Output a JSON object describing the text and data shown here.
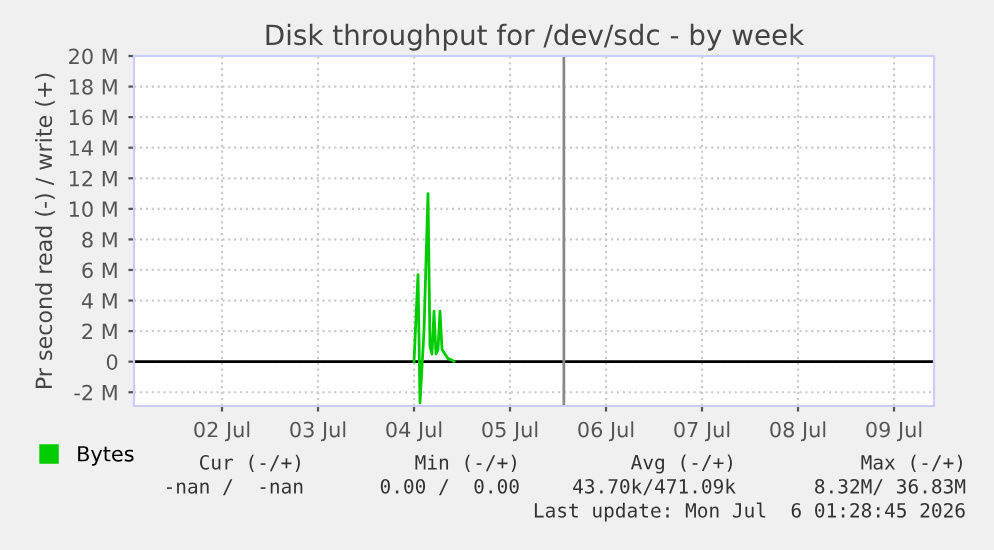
{
  "chart_data": {
    "type": "line",
    "title": "Disk throughput for /dev/sdc - by week",
    "ylabel": "Pr second read (-) / write (+)",
    "series": [
      {
        "name": "Bytes",
        "color": "#00cc00",
        "x": [
          "2026-07-04T12:00",
          "2026-07-04T13:00",
          "2026-07-04T13:30",
          "2026-07-04T14:30",
          "2026-07-04T15:30",
          "2026-07-04T16:00",
          "2026-07-04T16:30",
          "2026-07-04T17:00",
          "2026-07-04T17:30",
          "2026-07-04T18:00",
          "2026-07-04T18:30",
          "2026-07-04T19:00",
          "2026-07-04T19:30",
          "2026-07-04T20:30",
          "2026-07-04T21:30",
          "2026-07-04T22:00"
        ],
        "values": [
          0,
          5.7,
          -2.7,
          2,
          11,
          1,
          0.5,
          3.3,
          0.5,
          0.8,
          3.3,
          0.8,
          0.6,
          0.2,
          0.1,
          0
        ]
      }
    ],
    "xlim": [
      "2026-07-01T14:00",
      "2026-07-09T22:00"
    ],
    "xticks": [
      {
        "value": "2026-07-02T12:00",
        "label": "02 Jul"
      },
      {
        "value": "2026-07-03T12:00",
        "label": "03 Jul"
      },
      {
        "value": "2026-07-04T12:00",
        "label": "04 Jul"
      },
      {
        "value": "2026-07-05T12:00",
        "label": "05 Jul"
      },
      {
        "value": "2026-07-06T12:00",
        "label": "06 Jul"
      },
      {
        "value": "2026-07-07T12:00",
        "label": "07 Jul"
      },
      {
        "value": "2026-07-08T12:00",
        "label": "08 Jul"
      },
      {
        "value": "2026-07-09T12:00",
        "label": "09 Jul"
      }
    ],
    "ylim": [
      -2.9,
      20
    ],
    "yticks": [
      {
        "value": -2,
        "label": "-2 M"
      },
      {
        "value": 0,
        "label": "0"
      },
      {
        "value": 2,
        "label": "2 M"
      },
      {
        "value": 4,
        "label": "4 M"
      },
      {
        "value": 6,
        "label": "6 M"
      },
      {
        "value": 8,
        "label": "8 M"
      },
      {
        "value": 10,
        "label": "10 M"
      },
      {
        "value": 12,
        "label": "12 M"
      },
      {
        "value": 14,
        "label": "14 M"
      },
      {
        "value": 16,
        "label": "16 M"
      },
      {
        "value": 18,
        "label": "18 M"
      },
      {
        "value": 20,
        "label": "20 M"
      }
    ],
    "ref_lines": [
      {
        "axis": "y",
        "value": 0,
        "color": "#000000"
      },
      {
        "axis": "x",
        "value": "2026-07-06T01:28",
        "color": "#888888"
      }
    ],
    "grid": true,
    "legend": "bottom left",
    "marker": "none",
    "line_style": "solid",
    "annotations": [
      "Cur (-/+)",
      "Min (-/+)",
      "Avg (-/+)",
      "Max (-/+)",
      "-nan /  -nan",
      "0.00 /  0.00",
      "43.70k/471.09k",
      "8.32M/ 36.83M",
      "Last update: Mon Jul  6 01:28:45 2026"
    ]
  }
}
